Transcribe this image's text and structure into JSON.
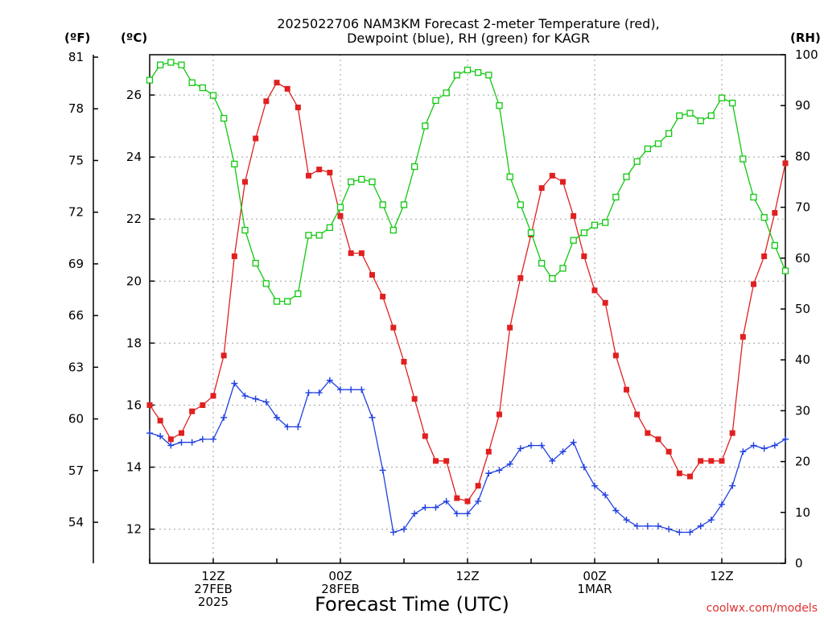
{
  "chart_data": {
    "type": "line",
    "title": "2025022706 NAM3KM Forecast 2-meter Temperature (red),",
    "subtitle": "Dewpoint (blue), RH (green) for KAGR",
    "xlabel": "Forecast Time (UTC)",
    "credit": "coolwx.com/models",
    "units": {
      "fahrenheit": "(ºF)",
      "celsius": "(ºC)",
      "rh": "(RH)"
    },
    "x_unit": "forecast hour from 2025-02-27 06Z",
    "x_range": [
      0,
      60
    ],
    "x_ticks": [
      {
        "hour": 6,
        "lines": [
          "12Z",
          "27FEB",
          "2025"
        ]
      },
      {
        "hour": 18,
        "lines": [
          "00Z",
          "28FEB"
        ]
      },
      {
        "hour": 30,
        "lines": [
          "12Z"
        ]
      },
      {
        "hour": 42,
        "lines": [
          "00Z",
          "1MAR"
        ]
      },
      {
        "hour": 54,
        "lines": [
          "12Z"
        ]
      }
    ],
    "y_left_celsius": {
      "range": [
        10.9,
        27.3
      ],
      "ticks": [
        "12",
        "14",
        "16",
        "18",
        "20",
        "22",
        "24",
        "26"
      ]
    },
    "y_left_fahrenheit": {
      "ticks": [
        "54",
        "57",
        "60",
        "63",
        "66",
        "69",
        "72",
        "75",
        "78",
        "81"
      ]
    },
    "y_right_rh": {
      "range": [
        0,
        100
      ],
      "ticks": [
        "0",
        "10",
        "20",
        "30",
        "40",
        "50",
        "60",
        "70",
        "80",
        "90",
        "100"
      ]
    },
    "grid": true,
    "colors": {
      "temperature": "#e02020",
      "dewpoint": "#2040e0",
      "rh": "#10c810",
      "grid": "#a0a0a0",
      "credit": "#e03030"
    },
    "series": [
      {
        "name": "Temperature (red)",
        "axis": "celsius",
        "marker": "filled-square",
        "x": [
          0,
          1,
          2,
          3,
          4,
          5,
          6,
          7,
          8,
          9,
          10,
          11,
          12,
          13,
          14,
          15,
          16,
          17,
          18,
          19,
          20,
          21,
          22,
          23,
          24,
          25,
          26,
          27,
          28,
          29,
          30,
          31,
          32,
          33,
          34,
          35,
          36,
          37,
          38,
          39,
          40,
          41,
          42,
          43,
          44,
          45,
          46,
          47,
          48,
          49,
          50,
          51,
          52,
          53,
          54,
          55,
          56,
          57,
          58,
          59,
          60
        ],
        "values": [
          16.0,
          15.5,
          14.9,
          15.1,
          15.8,
          16.0,
          16.3,
          17.6,
          20.8,
          23.2,
          24.6,
          25.8,
          26.4,
          26.2,
          25.6,
          23.4,
          23.6,
          23.5,
          22.1,
          20.9,
          20.9,
          20.2,
          19.5,
          18.5,
          17.4,
          16.2,
          15.0,
          14.2,
          14.2,
          13.0,
          12.9,
          13.4,
          14.5,
          15.7,
          18.5,
          20.1,
          21.5,
          23.0,
          23.4,
          23.2,
          22.1,
          20.8,
          19.7,
          19.3,
          17.6,
          16.5,
          15.7,
          15.1,
          14.9,
          14.5,
          13.8,
          13.7,
          14.2,
          14.2,
          14.2,
          15.1,
          18.2,
          19.9,
          20.8,
          22.2,
          23.8
        ]
      },
      {
        "name": "Dewpoint (blue)",
        "axis": "celsius",
        "marker": "plus",
        "x": [
          0,
          1,
          2,
          3,
          4,
          5,
          6,
          7,
          8,
          9,
          10,
          11,
          12,
          13,
          14,
          15,
          16,
          17,
          18,
          19,
          20,
          21,
          22,
          23,
          24,
          25,
          26,
          27,
          28,
          29,
          30,
          31,
          32,
          33,
          34,
          35,
          36,
          37,
          38,
          39,
          40,
          41,
          42,
          43,
          44,
          45,
          46,
          47,
          48,
          49,
          50,
          51,
          52,
          53,
          54,
          55,
          56,
          57,
          58,
          59,
          60
        ],
        "values": [
          15.1,
          15.0,
          14.7,
          14.8,
          14.8,
          14.9,
          14.9,
          15.6,
          16.7,
          16.3,
          16.2,
          16.1,
          15.6,
          15.3,
          15.3,
          16.4,
          16.4,
          16.8,
          16.5,
          16.5,
          16.5,
          15.6,
          13.9,
          11.9,
          12.0,
          12.5,
          12.7,
          12.7,
          12.9,
          12.5,
          12.5,
          12.9,
          13.8,
          13.9,
          14.1,
          14.6,
          14.7,
          14.7,
          14.2,
          14.5,
          14.8,
          14.0,
          13.4,
          13.1,
          12.6,
          12.3,
          12.1,
          12.1,
          12.1,
          12.0,
          11.9,
          11.9,
          12.1,
          12.3,
          12.8,
          13.4,
          14.5,
          14.7,
          14.6,
          14.7,
          14.9
        ]
      },
      {
        "name": "RH (green)",
        "axis": "rh",
        "marker": "open-square",
        "x": [
          0,
          1,
          2,
          3,
          4,
          5,
          6,
          7,
          8,
          9,
          10,
          11,
          12,
          13,
          14,
          15,
          16,
          17,
          18,
          19,
          20,
          21,
          22,
          23,
          24,
          25,
          26,
          27,
          28,
          29,
          30,
          31,
          32,
          33,
          34,
          35,
          36,
          37,
          38,
          39,
          40,
          41,
          42,
          43,
          44,
          45,
          46,
          47,
          48,
          49,
          50,
          51,
          52,
          53,
          54,
          55,
          56,
          57,
          58,
          59,
          60
        ],
        "values": [
          95,
          98,
          98.5,
          98,
          94.5,
          93.5,
          92,
          87.5,
          78.5,
          65.5,
          59,
          55,
          51.5,
          51.5,
          53,
          64.5,
          64.5,
          66,
          70,
          75,
          75.5,
          75,
          70.5,
          65.5,
          70.5,
          78,
          86,
          91,
          92.5,
          96,
          97,
          96.5,
          96,
          90,
          76,
          70.5,
          65,
          59,
          56,
          58,
          63.5,
          65,
          66.5,
          67,
          72,
          76,
          79,
          81.5,
          82.5,
          84.5,
          88,
          88.5,
          87,
          88,
          91.5,
          90.5,
          79.5,
          72,
          68,
          62.5,
          57.5
        ]
      }
    ]
  }
}
